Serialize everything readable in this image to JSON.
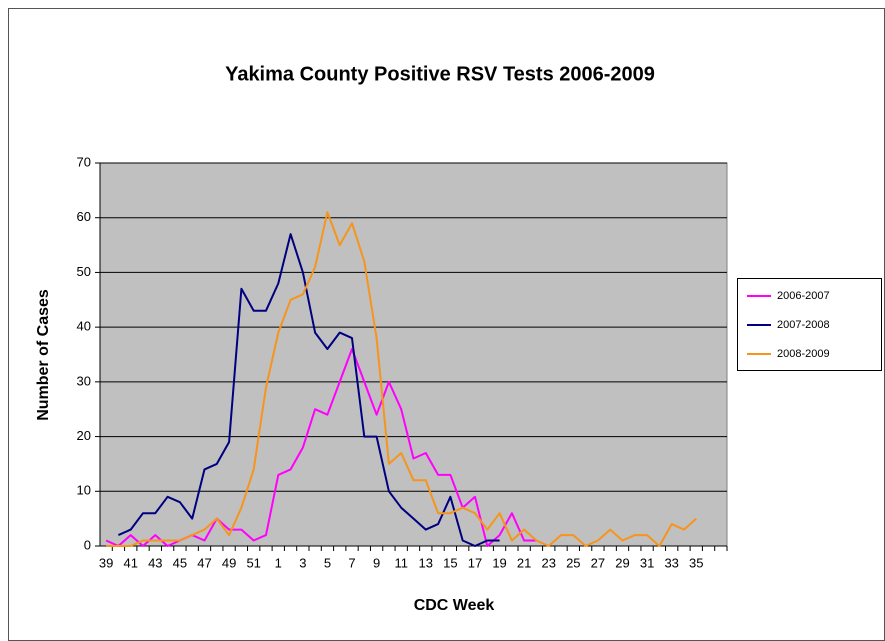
{
  "chart_data": {
    "type": "line",
    "title": "Yakima County Positive RSV Tests 2006-2009",
    "xlabel": "CDC Week",
    "ylabel": "Number of Cases",
    "categories": [
      "39",
      null,
      "41",
      null,
      "43",
      null,
      "45",
      null,
      "47",
      null,
      "49",
      null,
      "51",
      null,
      "1",
      null,
      "3",
      null,
      "5",
      null,
      "7",
      null,
      "9",
      null,
      "11",
      null,
      "13",
      null,
      "15",
      null,
      "17",
      null,
      "19",
      null,
      "21",
      null,
      "23",
      null,
      "25",
      null,
      "27",
      null,
      "29",
      null,
      "31",
      null,
      "33",
      null,
      "35",
      null,
      null
    ],
    "series": [
      {
        "name": "2006-2007",
        "color": "#ff00ff",
        "values": [
          1,
          0,
          2,
          0,
          2,
          0,
          1,
          2,
          1,
          5,
          3,
          3,
          1,
          2,
          13,
          14,
          18,
          25,
          24,
          30,
          36,
          30,
          24,
          30,
          25,
          16,
          17,
          13,
          13,
          7,
          9,
          0,
          2,
          6,
          1,
          1,
          null,
          null,
          null,
          null,
          null,
          null,
          null,
          null,
          null,
          null,
          null,
          null,
          null,
          null,
          null
        ]
      },
      {
        "name": "2007-2008",
        "color": "#000080",
        "values": [
          null,
          2,
          3,
          6,
          6,
          9,
          8,
          5,
          14,
          15,
          19,
          47,
          43,
          43,
          48,
          57,
          50,
          39,
          36,
          39,
          38,
          20,
          20,
          10,
          7,
          5,
          3,
          4,
          9,
          1,
          0,
          1,
          1,
          null,
          null,
          null,
          null,
          null,
          null,
          null,
          null,
          null,
          null,
          null,
          null,
          null,
          null,
          null,
          null,
          null,
          null
        ]
      },
      {
        "name": "2008-2009",
        "color": "#f7941d",
        "values": [
          0,
          0,
          0,
          1,
          1,
          1,
          1,
          2,
          3,
          5,
          2,
          7,
          14,
          29,
          39,
          45,
          46,
          51,
          61,
          55,
          59,
          52,
          38,
          15,
          17,
          12,
          12,
          6,
          6,
          7,
          6,
          3,
          6,
          1,
          3,
          1,
          0,
          2,
          2,
          0,
          1,
          3,
          1,
          2,
          2,
          0,
          4,
          3,
          5,
          null,
          null
        ]
      }
    ],
    "ylim": [
      0,
      70
    ],
    "yticks": [
      0,
      10,
      20,
      30,
      40,
      50,
      60,
      70
    ],
    "grid": true,
    "legend": "right"
  }
}
